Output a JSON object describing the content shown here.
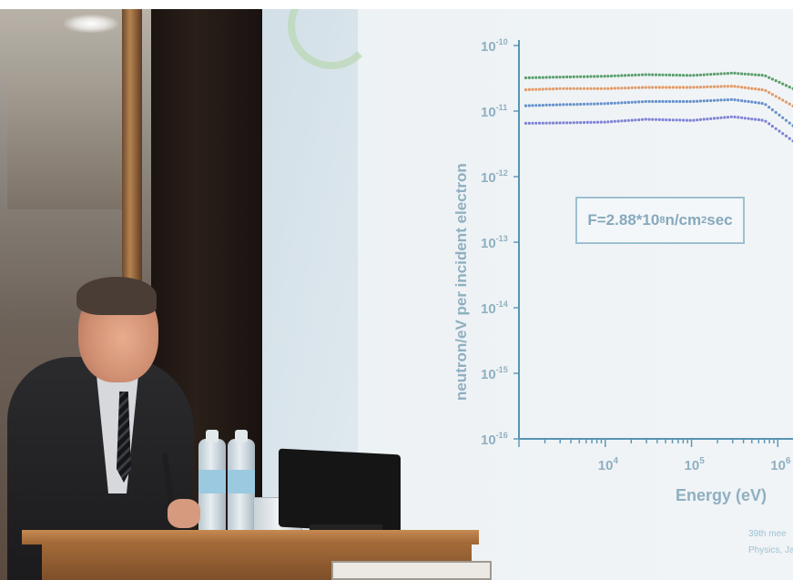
{
  "chart_data": {
    "type": "scatter",
    "xlabel": "Energy (eV)",
    "ylabel": "neutron/eV per incident electron",
    "x_scale": "log",
    "y_scale": "log",
    "xlim": [
      1000,
      1500000
    ],
    "ylim": [
      1e-16,
      1e-10
    ],
    "x_ticks": [
      {
        "value": 10000,
        "base": "10",
        "exp": "4"
      },
      {
        "value": 100000,
        "base": "10",
        "exp": "5"
      },
      {
        "value": 1000000,
        "base": "10",
        "exp": "6"
      }
    ],
    "y_ticks": [
      {
        "value": 1e-10,
        "base": "10",
        "exp": "-10"
      },
      {
        "value": 1e-11,
        "base": "10",
        "exp": "-11"
      },
      {
        "value": 1e-12,
        "base": "10",
        "exp": "-12"
      },
      {
        "value": 1e-13,
        "base": "10",
        "exp": "-13"
      },
      {
        "value": 1e-14,
        "base": "10",
        "exp": "-14"
      },
      {
        "value": 1e-15,
        "base": "10",
        "exp": "-15"
      },
      {
        "value": 1e-16,
        "base": "10",
        "exp": "-16"
      }
    ],
    "series": [
      {
        "color": "#3f8f55",
        "x": [
          1000,
          3000,
          10000,
          30000,
          100000,
          300000,
          700000,
          1500000
        ],
        "y": [
          3.2e-11,
          3.3e-11,
          3.4e-11,
          3.6e-11,
          3.5e-11,
          3.8e-11,
          3.5e-11,
          2.2e-11
        ]
      },
      {
        "color": "#e08a4c",
        "x": [
          1000,
          3000,
          10000,
          30000,
          100000,
          300000,
          700000,
          1500000
        ],
        "y": [
          2.1e-11,
          2.2e-11,
          2.2e-11,
          2.3e-11,
          2.3e-11,
          2.4e-11,
          2.1e-11,
          1.2e-11
        ]
      },
      {
        "color": "#4e7fc4",
        "x": [
          1000,
          3000,
          10000,
          30000,
          100000,
          300000,
          700000,
          1500000
        ],
        "y": [
          1.2e-11,
          1.25e-11,
          1.3e-11,
          1.4e-11,
          1.4e-11,
          1.5e-11,
          1.3e-11,
          6e-12
        ]
      },
      {
        "color": "#6b6fd0",
        "x": [
          1000,
          3000,
          10000,
          30000,
          100000,
          300000,
          700000,
          1500000
        ],
        "y": [
          6.5e-12,
          6.6e-12,
          6.8e-12,
          7.5e-12,
          7.2e-12,
          8.2e-12,
          7.2e-12,
          3.5e-12
        ]
      }
    ],
    "annotation": {
      "prefix": "F=2.88*10",
      "exp": "8",
      "unit_a": " n/cm",
      "exp2": "2",
      "unit_b": "sec"
    }
  },
  "slide": {
    "footer_line1": "39th mee",
    "footer_line2": "Physics, Ja"
  },
  "colors": {
    "axis": "#5a93b4",
    "text": "#8fb0c1",
    "podium": "#9d6535"
  }
}
